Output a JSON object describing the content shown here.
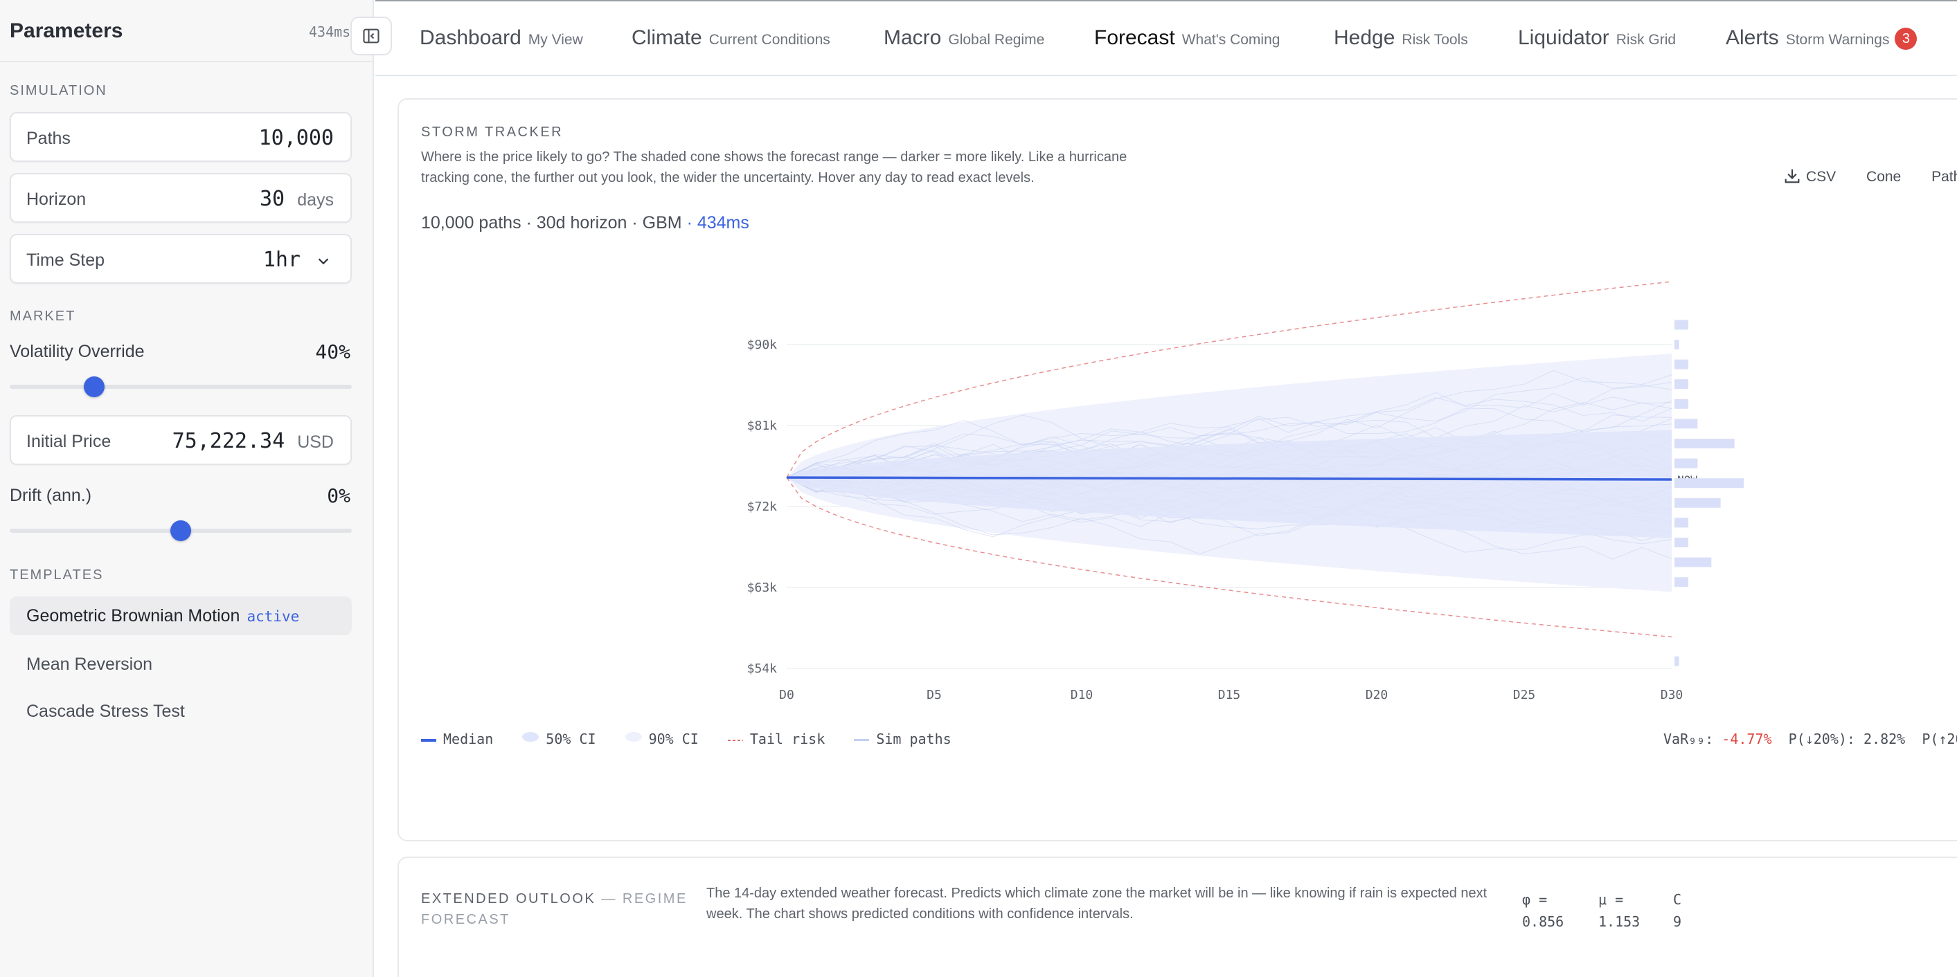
{
  "sidebar": {
    "title": "Parameters",
    "timing": "434ms",
    "collapse_icon": "sidebar-collapse-icon",
    "simulation": {
      "label": "SIMULATION",
      "paths": {
        "label": "Paths",
        "value": "10,000"
      },
      "horizon": {
        "label": "Horizon",
        "value": "30",
        "unit": "days"
      },
      "time_step": {
        "label": "Time Step",
        "value": "1hr"
      }
    },
    "market": {
      "label": "MARKET",
      "volatility": {
        "label": "Volatility Override",
        "value": "40%",
        "level": 0.23
      },
      "initial_price": {
        "label": "Initial Price",
        "value": "75,222.34",
        "unit": "USD"
      },
      "drift": {
        "label": "Drift (ann.)",
        "value": "0%",
        "level": 0.5
      }
    },
    "templates": {
      "label": "TEMPLATES",
      "items": [
        {
          "label": "Geometric Brownian Motion",
          "badge": "active"
        },
        {
          "label": "Mean Reversion"
        },
        {
          "label": "Cascade Stress Test"
        }
      ]
    }
  },
  "nav": {
    "tabs": [
      {
        "label": "Dashboard",
        "sub": "My View"
      },
      {
        "label": "Climate",
        "sub": "Current Conditions"
      },
      {
        "label": "Macro",
        "sub": "Global Regime"
      },
      {
        "label": "Forecast",
        "sub": "What's Coming"
      },
      {
        "label": "Hedge",
        "sub": "Risk Tools"
      },
      {
        "label": "Liquidator",
        "sub": "Risk Grid"
      },
      {
        "label": "Alerts",
        "sub": "Storm Warnings",
        "badge": "3"
      }
    ],
    "active_tab": "Forecast"
  },
  "storm": {
    "kicker": "STORM TRACKER",
    "description": "Where is the price likely to go? The shaded cone shows the forecast range — darker = more likely. Like a hurricane tracking cone, the further out you look, the wider the uncertainty. Hover any day to read exact levels.",
    "meta": "10,000 paths · 30d horizon · GBM",
    "meta_ms": "· 434ms",
    "tools": {
      "csv": "CSV",
      "cone": "Cone",
      "paths": "Paths"
    },
    "legend": {
      "median": "Median",
      "ci50": "50% CI",
      "ci90": "90% CI",
      "tail": "Tail risk",
      "sim": "Sim paths"
    },
    "stats": {
      "var_label": "VaR₉₉:",
      "var_value": "-4.77%",
      "p_down": "P(↓20%): 2.82%",
      "p_up": "P(↑20"
    },
    "now_label": "NOW"
  },
  "chart_data": {
    "type": "area",
    "x_ticks": [
      "D0",
      "D5",
      "D10",
      "D15",
      "D20",
      "D25",
      "D30"
    ],
    "y_ticks": [
      "$90k",
      "$81k",
      "$72k",
      "$63k",
      "$54k"
    ],
    "y_tick_values": [
      90000,
      81000,
      72000,
      63000,
      54000
    ],
    "ylim": [
      54000,
      90000
    ],
    "xlim": [
      0,
      30
    ],
    "start_price": 75222.34,
    "median_end": 75000,
    "ci50_end": [
      68500,
      80500
    ],
    "ci90_end": [
      62500,
      89000
    ],
    "tail_end": [
      57500,
      97000
    ],
    "histogram": [
      {
        "price": 92200,
        "count": 3
      },
      {
        "price": 90000,
        "count": 1
      },
      {
        "price": 87800,
        "count": 3
      },
      {
        "price": 85600,
        "count": 3
      },
      {
        "price": 83400,
        "count": 3
      },
      {
        "price": 81200,
        "count": 5
      },
      {
        "price": 79000,
        "count": 13
      },
      {
        "price": 76800,
        "count": 5
      },
      {
        "price": 74600,
        "count": 15
      },
      {
        "price": 72400,
        "count": 10
      },
      {
        "price": 70200,
        "count": 3
      },
      {
        "price": 68000,
        "count": 3
      },
      {
        "price": 65800,
        "count": 8
      },
      {
        "price": 63600,
        "count": 3
      },
      {
        "price": 54800,
        "count": 1
      }
    ],
    "grid": true,
    "legend_position": "bottom-left",
    "colors": {
      "median": "#3b63e0",
      "ci": "#dfe5fa",
      "tail": "#e06a6a",
      "sim": "#c5cff3",
      "hist": "#d9dff8"
    }
  },
  "outlook": {
    "kicker": "EXTENDED OUTLOOK",
    "kicker_sub": "— REGIME FORECAST",
    "description": "The 14-day extended weather forecast. Predicts which climate zone the market will be in — like knowing if rain is expected next week. The chart shows predicted conditions with confidence intervals.",
    "params": [
      {
        "label": "φ =",
        "value": "0.856"
      },
      {
        "label": "μ =",
        "value": "1.153"
      },
      {
        "label": "C",
        "value": "9"
      }
    ]
  }
}
